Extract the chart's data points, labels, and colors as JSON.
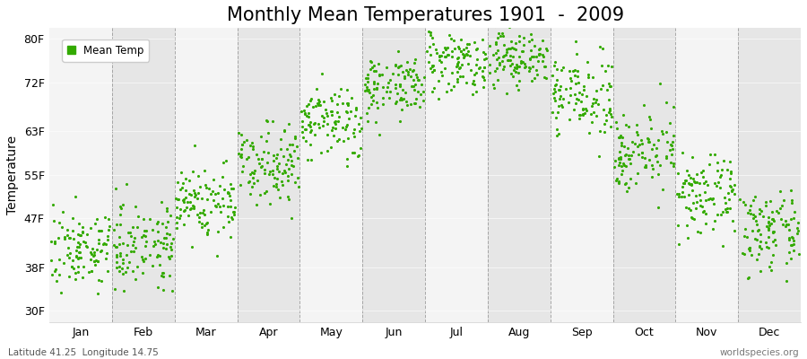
{
  "title": "Monthly Mean Temperatures 1901  -  2009",
  "ylabel": "Temperature",
  "xlabel_bottom_left": "Latitude 41.25  Longitude 14.75",
  "xlabel_bottom_right": "worldspecies.org",
  "yticks": [
    30,
    38,
    47,
    55,
    63,
    72,
    80
  ],
  "ytick_labels": [
    "30F",
    "38F",
    "47F",
    "55F",
    "63F",
    "72F",
    "80F"
  ],
  "ylim": [
    28,
    82
  ],
  "months": [
    "Jan",
    "Feb",
    "Mar",
    "Apr",
    "May",
    "Jun",
    "Jul",
    "Aug",
    "Sep",
    "Oct",
    "Nov",
    "Dec"
  ],
  "month_tick_positions": [
    0.5,
    1.5,
    2.5,
    3.5,
    4.5,
    5.5,
    6.5,
    7.5,
    8.5,
    9.5,
    10.5,
    11.5
  ],
  "month_starts": [
    0,
    1,
    2,
    3,
    4,
    5,
    6,
    7,
    8,
    9,
    10,
    11,
    12
  ],
  "dot_color": "#33aa00",
  "dot_size": 5,
  "background_color": "#ffffff",
  "plot_bg_light": "#f4f4f4",
  "plot_bg_dark": "#e6e6e6",
  "grid_color": "#888888",
  "title_fontsize": 15,
  "legend_label": "Mean Temp",
  "monthly_means": [
    41.5,
    42.5,
    50.0,
    57.5,
    64.5,
    71.5,
    76.0,
    76.5,
    69.5,
    59.5,
    51.0,
    44.5
  ],
  "monthly_stds": [
    3.5,
    3.8,
    3.5,
    3.5,
    3.5,
    2.8,
    2.8,
    2.8,
    3.5,
    3.5,
    3.5,
    3.5
  ],
  "n_years": 109
}
